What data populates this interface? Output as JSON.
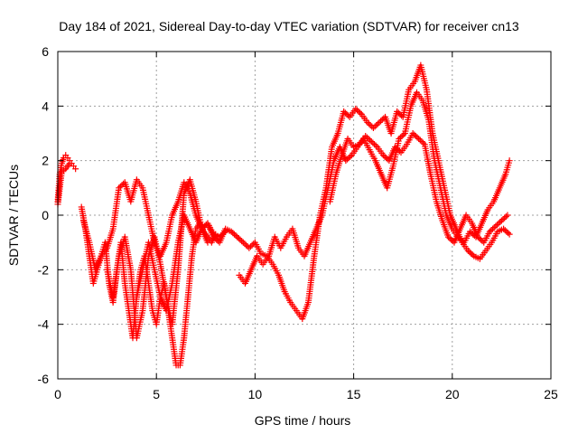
{
  "chart_data": {
    "type": "scatter",
    "title": "Day 184 of 2021, Sidereal Day-to-day VTEC variation (SDTVAR) for receiver cn13",
    "xlabel": "GPS time / hours",
    "ylabel": "SDTVAR / TECUs",
    "xlim": [
      0,
      25
    ],
    "ylim": [
      -6,
      6
    ],
    "xticks": [
      0,
      5,
      10,
      15,
      20,
      25
    ],
    "yticks": [
      -6,
      -4,
      -2,
      0,
      2,
      4,
      6
    ],
    "grid": true,
    "marker": "plus",
    "color": "#ff0000",
    "series": [
      {
        "x": [
          0.0,
          0.1,
          0.2,
          0.3,
          0.4,
          0.5,
          0.6,
          0.7,
          0.8,
          0.9
        ],
        "y": [
          0.5,
          1.5,
          1.9,
          2.1,
          2.2,
          2.1,
          2.0,
          1.9,
          1.8,
          1.7
        ]
      },
      {
        "x": [
          1.2,
          1.4,
          1.6,
          1.8,
          2.0,
          2.2,
          2.4,
          2.6,
          2.8,
          3.0,
          3.2,
          3.4,
          3.6,
          3.8,
          4.0,
          4.2,
          4.4,
          4.6,
          4.8,
          5.0,
          5.2,
          5.4,
          5.6,
          5.8,
          6.0,
          6.2,
          6.4,
          6.6,
          6.8,
          7.0,
          7.2,
          7.4,
          7.6,
          7.8,
          8.0
        ],
        "y": [
          0.3,
          -0.5,
          -1.5,
          -2.5,
          -2.0,
          -1.5,
          -1.0,
          -2.5,
          -3.2,
          -2.0,
          -1.0,
          -2.5,
          -3.5,
          -4.5,
          -3.0,
          -2.0,
          -1.5,
          -2.5,
          -3.5,
          -4.0,
          -3.0,
          -2.5,
          -3.5,
          -4.5,
          -5.5,
          -5.5,
          -4.5,
          -3.0,
          -1.5,
          -0.5,
          -0.3,
          -0.6,
          -0.8,
          -1.0,
          -0.7
        ]
      },
      {
        "x": [
          1.3,
          1.6,
          1.9,
          2.2,
          2.5,
          2.8,
          3.1,
          3.4,
          3.7,
          4.0,
          4.3,
          4.6,
          4.9,
          5.2,
          5.5,
          5.8,
          6.1,
          6.4,
          6.7,
          7.0,
          7.3,
          7.6,
          7.9,
          8.2,
          8.5
        ],
        "y": [
          -0.2,
          -1.0,
          -2.0,
          -1.5,
          -1.2,
          -0.5,
          1.0,
          1.2,
          0.5,
          1.3,
          1.0,
          0.0,
          -1.0,
          -1.5,
          -1.0,
          0.0,
          0.5,
          1.2,
          0.8,
          0.0,
          -0.5,
          -0.3,
          -0.7,
          -0.8,
          -0.6
        ]
      },
      {
        "x": [
          2.5,
          2.8,
          3.1,
          3.4,
          3.7,
          4.0,
          4.3,
          4.6,
          4.9,
          5.2,
          5.5,
          5.8,
          6.1,
          6.4,
          6.7,
          7.0,
          7.3,
          7.6
        ],
        "y": [
          -2.0,
          -3.0,
          -1.5,
          -0.8,
          -2.0,
          -4.5,
          -3.5,
          -1.5,
          -0.8,
          -1.8,
          -3.0,
          -4.0,
          -2.0,
          0.8,
          1.3,
          0.5,
          -0.5,
          -1.0
        ]
      },
      {
        "x": [
          4.0,
          4.3,
          4.6,
          4.9,
          5.2,
          5.5,
          5.8,
          6.1,
          6.4,
          6.7,
          7.0,
          7.3,
          7.6,
          7.9,
          8.2,
          8.5,
          8.8,
          9.1,
          9.4,
          9.7,
          10.0,
          10.3,
          10.6,
          10.9,
          11.2,
          11.5,
          11.8,
          12.1,
          12.4,
          12.7,
          13.0,
          13.3,
          13.6,
          13.9,
          14.2,
          14.5,
          14.8,
          15.1,
          15.4,
          15.7,
          16.0,
          16.3,
          16.6,
          16.9,
          17.2,
          17.5,
          17.8,
          18.1,
          18.4,
          18.7,
          19.0,
          19.3,
          19.6,
          19.9,
          20.2,
          20.5,
          20.8,
          21.1,
          21.4,
          21.7,
          22.0,
          22.3,
          22.6,
          22.9
        ],
        "y": [
          -3.0,
          -2.0,
          -1.0,
          -2.0,
          -3.0,
          -3.5,
          -2.5,
          -1.0,
          0.0,
          -0.5,
          -1.0,
          -0.5,
          -0.3,
          -0.8,
          -1.0,
          -0.5,
          -0.6,
          -0.8,
          -1.0,
          -1.2,
          -1.0,
          -1.4,
          -1.5,
          -1.8,
          -2.2,
          -2.8,
          -3.2,
          -3.5,
          -3.8,
          -3.2,
          -1.5,
          0.0,
          1.0,
          2.5,
          3.0,
          3.8,
          3.6,
          3.9,
          3.7,
          3.4,
          3.2,
          3.4,
          3.6,
          3.0,
          3.8,
          3.6,
          4.6,
          4.9,
          5.5,
          4.6,
          3.0,
          2.0,
          1.0,
          0.0,
          -0.5,
          -1.0,
          -1.3,
          -1.5,
          -1.6,
          -1.3,
          -1.0,
          -0.6,
          -0.5,
          -0.7
        ]
      },
      {
        "x": [
          9.2,
          9.5,
          9.8,
          10.1,
          10.4,
          10.7,
          11.0,
          11.3,
          11.6,
          11.9,
          12.2,
          12.5,
          12.8,
          13.1,
          13.4,
          13.7,
          14.0,
          14.3,
          14.6,
          14.9,
          15.2,
          15.5,
          15.8,
          16.1,
          16.4,
          16.7,
          17.0,
          17.3,
          17.6,
          17.9,
          18.2,
          18.5,
          18.8,
          19.1,
          19.4,
          19.7,
          20.0,
          20.3,
          20.6,
          20.9,
          21.2,
          21.5,
          21.8,
          22.1,
          22.4,
          22.7,
          22.9
        ],
        "y": [
          -2.2,
          -2.5,
          -2.0,
          -1.5,
          -1.8,
          -1.5,
          -0.8,
          -1.2,
          -0.8,
          -0.5,
          -1.2,
          -1.5,
          -1.0,
          -0.5,
          0.0,
          1.0,
          2.0,
          2.5,
          2.0,
          2.2,
          2.5,
          2.8,
          2.4,
          2.0,
          1.5,
          1.0,
          1.8,
          2.8,
          3.0,
          4.0,
          4.5,
          4.2,
          3.5,
          2.0,
          1.0,
          0.0,
          -0.5,
          -0.8,
          -1.0,
          -0.6,
          -0.8,
          -0.3,
          0.2,
          0.5,
          1.0,
          1.5,
          2.0
        ]
      },
      {
        "x": [
          0.0,
          0.2,
          0.4,
          0.6
        ],
        "y": [
          0.4,
          1.6,
          1.7,
          1.9
        ]
      },
      {
        "x": [
          13.8,
          14.1,
          14.4,
          14.7,
          15.0,
          15.3,
          15.6,
          15.9,
          16.2,
          16.5,
          16.8,
          17.1,
          17.4,
          17.7,
          18.0,
          18.3,
          18.6,
          18.9,
          19.2,
          19.5,
          19.8,
          20.1,
          20.4,
          20.7,
          21.0,
          21.3,
          21.6,
          21.9,
          22.2,
          22.5,
          22.8
        ],
        "y": [
          0.5,
          1.5,
          2.2,
          2.8,
          2.5,
          2.6,
          2.9,
          2.7,
          2.5,
          2.2,
          2.0,
          2.5,
          2.3,
          2.6,
          3.0,
          2.8,
          2.6,
          1.5,
          0.5,
          -0.2,
          -0.8,
          -1.0,
          -0.5,
          0.0,
          -0.3,
          -0.8,
          -1.0,
          -0.6,
          -0.4,
          -0.2,
          0.0
        ]
      }
    ]
  }
}
